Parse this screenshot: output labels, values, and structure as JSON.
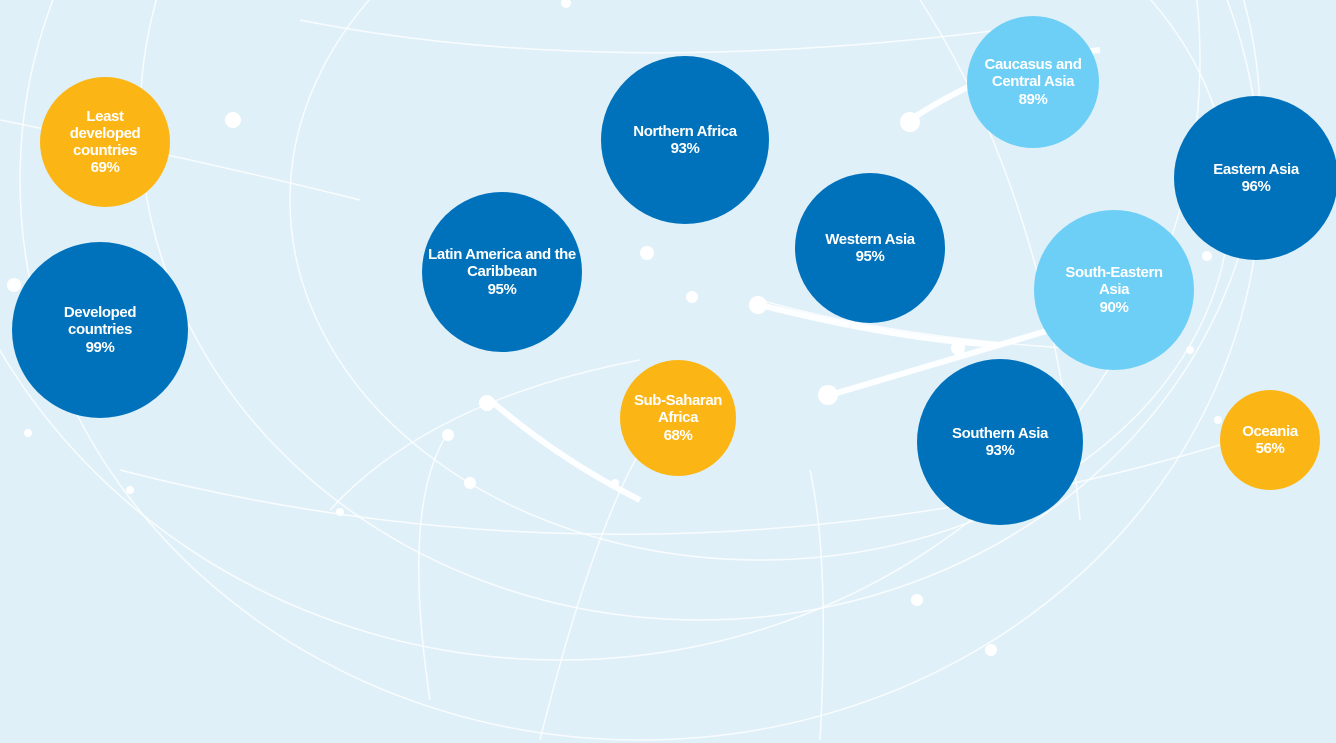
{
  "nodes": [
    {
      "label": "Least developed countries",
      "value": "69%",
      "color": "#fbb616"
    },
    {
      "label": "Developed countries",
      "value": "99%",
      "color": "#0072bc"
    },
    {
      "label": "Latin America and the Caribbean",
      "value": "95%",
      "color": "#0072bc"
    },
    {
      "label": "Northern Africa",
      "value": "93%",
      "color": "#0072bc"
    },
    {
      "label": "Sub-Saharan Africa",
      "value": "68%",
      "color": "#fbb616"
    },
    {
      "label": "Western Asia",
      "value": "95%",
      "color": "#0072bc"
    },
    {
      "label": "Caucasus and Central Asia",
      "value": "89%",
      "color": "#6dcff6"
    },
    {
      "label": "Eastern Asia",
      "value": "96%",
      "color": "#0072bc"
    },
    {
      "label": "South-Eastern Asia",
      "value": "90%",
      "color": "#6dcff6"
    },
    {
      "label": "Southern Asia",
      "value": "93%",
      "color": "#0072bc"
    },
    {
      "label": "Oceania",
      "value": "56%",
      "color": "#fbb616"
    }
  ]
}
